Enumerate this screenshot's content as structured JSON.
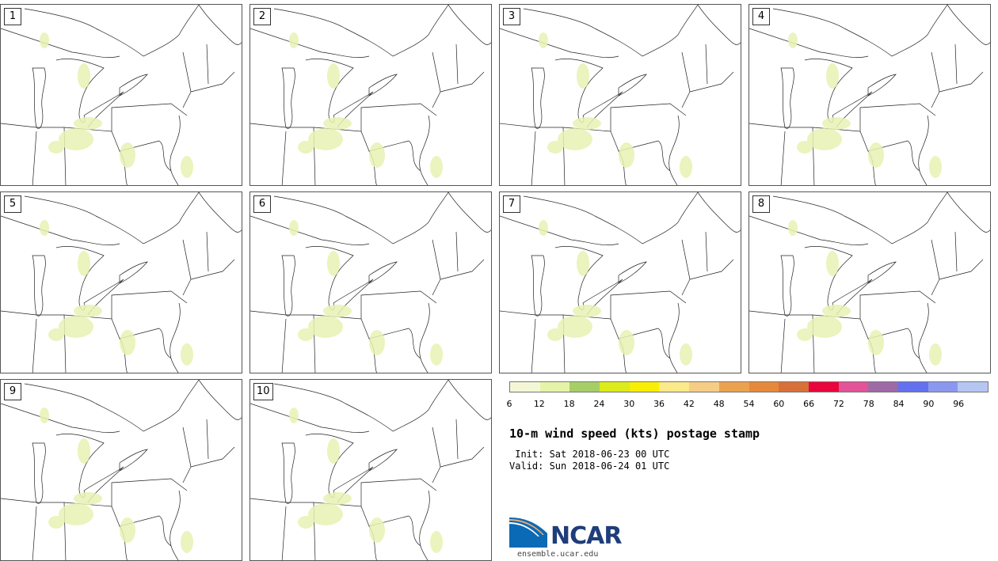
{
  "panels": [
    "1",
    "2",
    "3",
    "4",
    "5",
    "6",
    "7",
    "8",
    "9",
    "10"
  ],
  "colorbar": {
    "colors": [
      "#f4f7d6",
      "#e5f3a9",
      "#a5cf66",
      "#dceb1b",
      "#f9ee06",
      "#fbe98a",
      "#f5cd85",
      "#eba24f",
      "#e6893b",
      "#d8703a",
      "#e9063c",
      "#e25397",
      "#9d6aa6",
      "#6371ef",
      "#8a99ef",
      "#b6c6f3"
    ],
    "ticks": [
      "6",
      "12",
      "18",
      "24",
      "30",
      "36",
      "42",
      "48",
      "54",
      "60",
      "66",
      "72",
      "78",
      "84",
      "90",
      "96"
    ]
  },
  "title": "10-m wind speed (kts) postage stamp",
  "init": " Init: Sat 2018-06-23 00 UTC",
  "valid": "Valid: Sun 2018-06-24 01 UTC",
  "logo": {
    "name": "NCAR",
    "icon": "ncar-logo-icon",
    "website": "ensemble.ucar.edu"
  }
}
